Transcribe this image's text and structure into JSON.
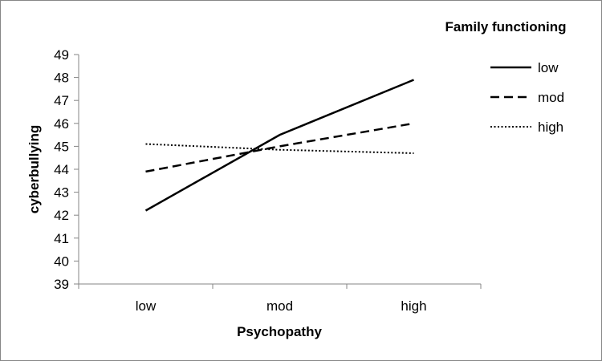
{
  "chart_data": {
    "type": "line",
    "categories": [
      "low",
      "mod",
      "high"
    ],
    "series": [
      {
        "name": "low",
        "values": [
          42.2,
          45.5,
          47.9
        ],
        "dash": "solid"
      },
      {
        "name": "mod",
        "values": [
          43.9,
          45.0,
          46.0
        ],
        "dash": "dashed"
      },
      {
        "name": "high",
        "values": [
          45.1,
          44.85,
          44.7
        ],
        "dash": "dotted"
      }
    ],
    "xlabel": "Psychopathy",
    "ylabel": "cyberbullying",
    "ylim": [
      39,
      49
    ],
    "yticks": [
      39,
      40,
      41,
      42,
      43,
      44,
      45,
      46,
      47,
      48,
      49
    ],
    "legend_title": "Family functioning",
    "legend_position": "top-right",
    "grid": false,
    "line_color": "#000000",
    "axis_color": "#868686"
  }
}
